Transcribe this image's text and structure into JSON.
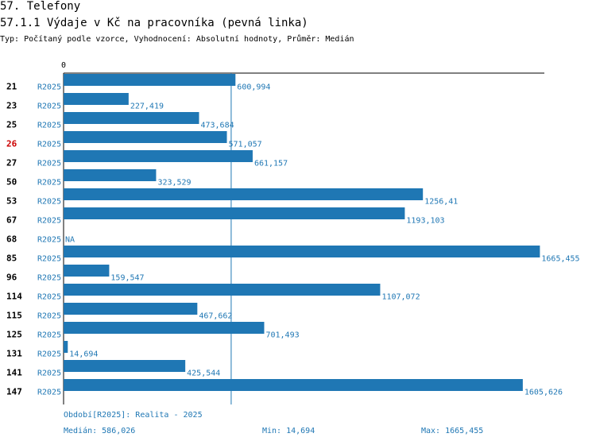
{
  "header": {
    "section": "57. Telefony",
    "title": "57.1.1 Výdaje v Kč na pracovníka (pevná linka)",
    "subtitle": "Typ: Počítaný podle vzorce, Vyhodnocení: Absolutní hodnoty, Průměr: Medián"
  },
  "colors": {
    "bar": "#1f77b4",
    "label": "#1f77b4",
    "highlight": "#cc0000",
    "median_line": "#1f77b4"
  },
  "chart_data": {
    "type": "bar",
    "orientation": "horizontal",
    "axis_start_label": "0",
    "series_label": "R2025",
    "categories": [
      "21",
      "23",
      "25",
      "26",
      "27",
      "50",
      "53",
      "67",
      "68",
      "85",
      "96",
      "114",
      "115",
      "125",
      "131",
      "141",
      "147"
    ],
    "values": [
      600.994,
      227.419,
      473.684,
      571.057,
      661.157,
      323.529,
      1256.41,
      1193.103,
      null,
      1665.455,
      159.547,
      1107.072,
      467.662,
      701.493,
      14.694,
      425.544,
      1605.626
    ],
    "value_labels": [
      "600,994",
      "227,419",
      "473,684",
      "571,057",
      "661,157",
      "323,529",
      "1256,41",
      "1193,103",
      "NA",
      "1665,455",
      "159,547",
      "1107,072",
      "467,662",
      "701,493",
      "14,694",
      "425,544",
      "1605,626"
    ],
    "highlighted_category": "26",
    "median": 586.026,
    "xlim": [
      0,
      1681
    ]
  },
  "footer": {
    "period": "Období[R2025]: Realita - 2025",
    "median": "Medián: 586,026",
    "min": "Min: 14,694",
    "max": "Max: 1665,455"
  }
}
